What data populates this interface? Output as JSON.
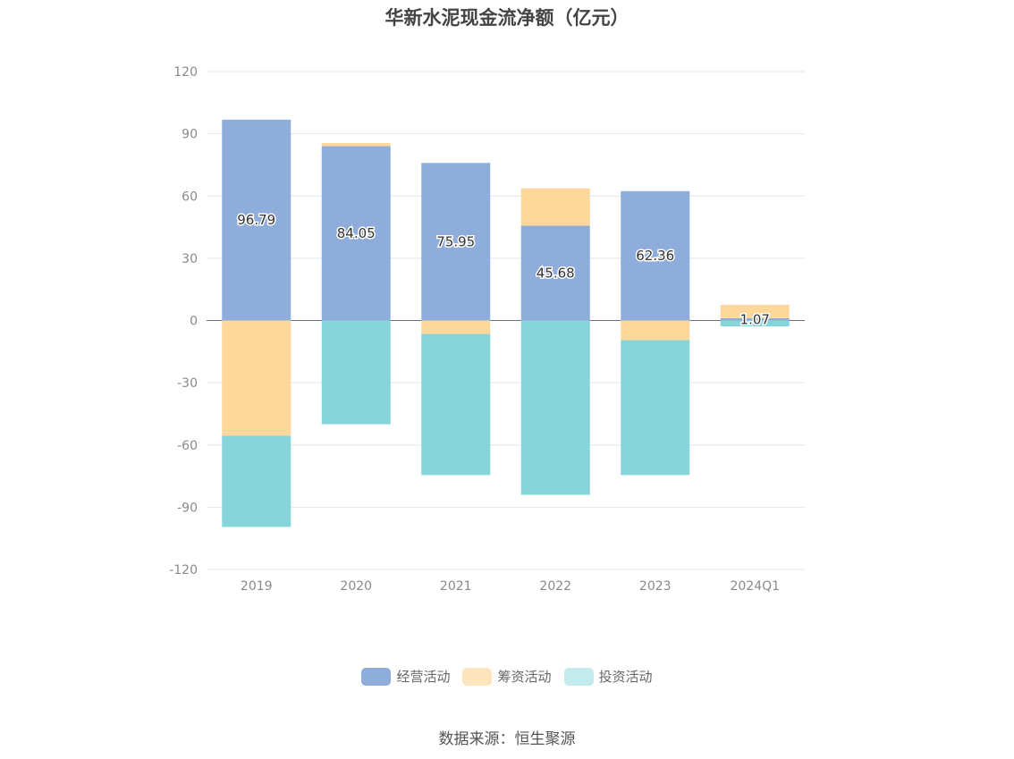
{
  "chart_data": {
    "type": "bar",
    "stacked": true,
    "title": "华新水泥现金流净额（亿元）",
    "categories": [
      "2019",
      "2020",
      "2021",
      "2022",
      "2023",
      "2024Q1"
    ],
    "series": [
      {
        "name": "经营活动",
        "color": "#8eaddb",
        "values": [
          96.79,
          84.05,
          75.95,
          45.68,
          62.36,
          1.07
        ],
        "labels": [
          "96.79",
          "84.05",
          "75.95",
          "45.68",
          "62.36",
          "1.07"
        ]
      },
      {
        "name": "筹资活动",
        "color": "#fed89b",
        "values": [
          -55.5,
          1.5,
          -6.5,
          18.0,
          -9.5,
          6.5
        ]
      },
      {
        "name": "投资活动",
        "color": "#86d5da",
        "values": [
          -44.0,
          -50.0,
          -68.0,
          -84.0,
          -65.0,
          -2.8
        ]
      }
    ],
    "legend_colors": [
      "#8eaddb",
      "#fee4bd",
      "#c3ebee"
    ],
    "ylim": [
      -120,
      120
    ],
    "yticks": [
      120,
      90,
      60,
      30,
      0,
      -30,
      -60,
      -90,
      -120
    ],
    "grid": true,
    "legend_position": "bottom"
  },
  "source": "数据来源：恒生聚源"
}
